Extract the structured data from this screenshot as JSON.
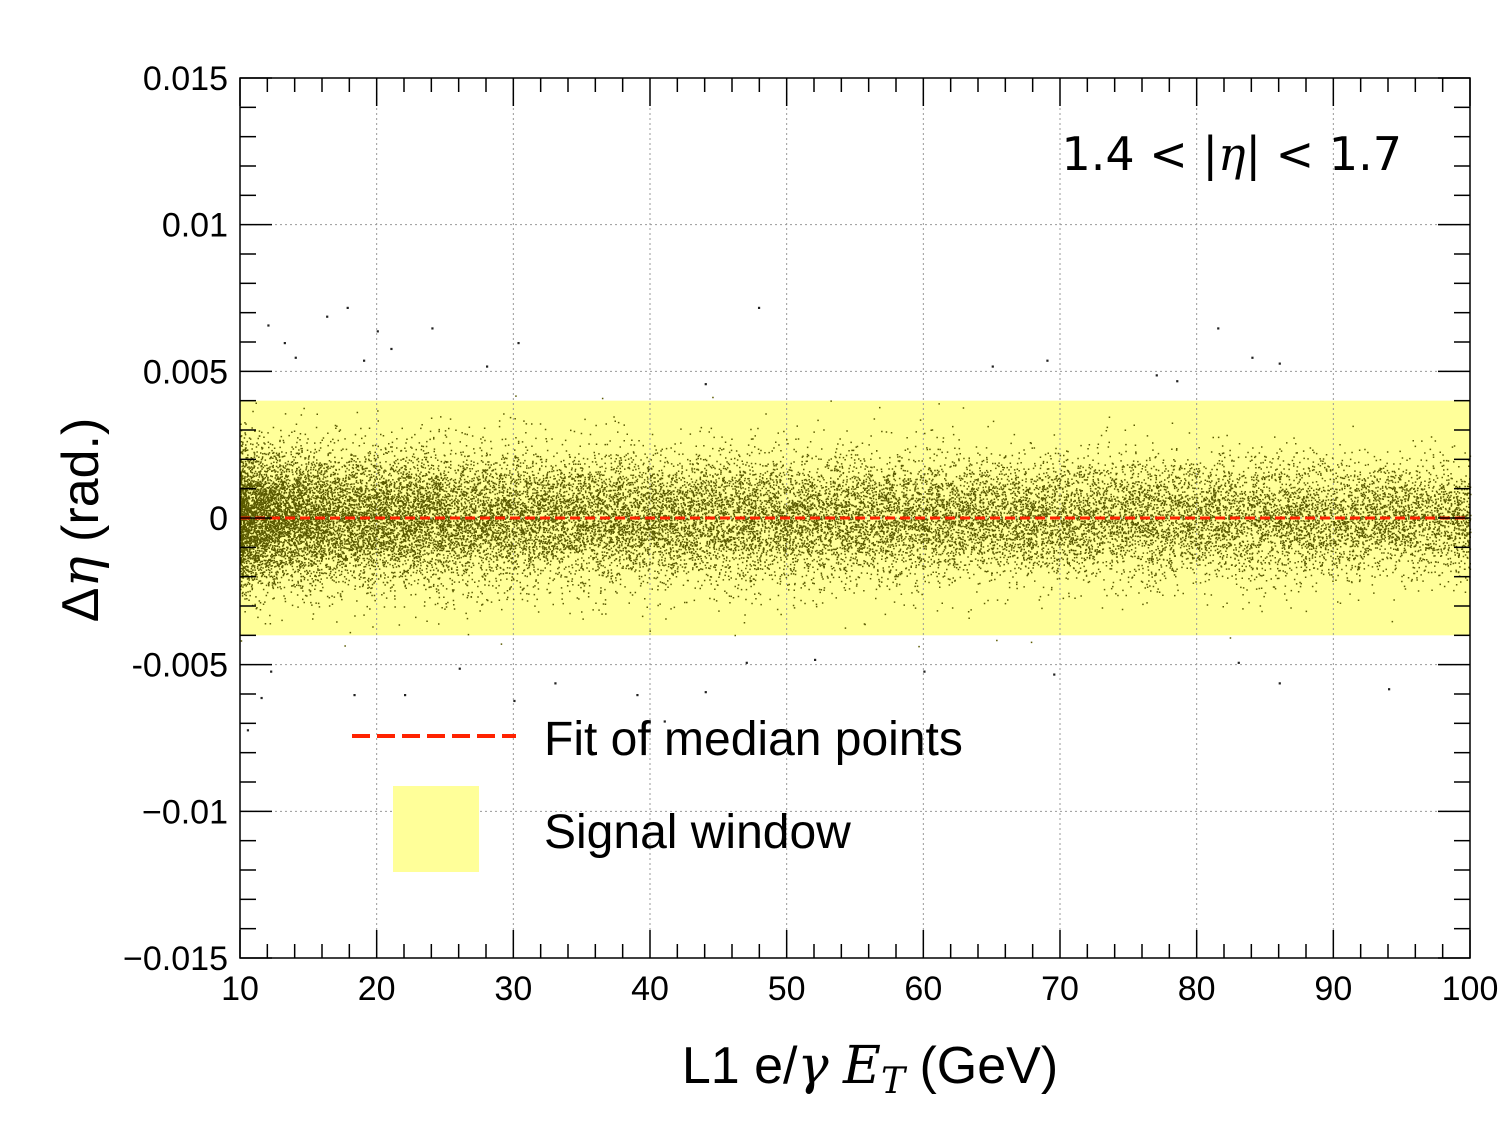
{
  "chart_data": {
    "type": "scatter",
    "title": "",
    "xlabel": {
      "prefix": "L1 e/",
      "gamma": "γ",
      "et_main": "E",
      "et_sub": "T",
      "suffix": " (GeV)"
    },
    "ylabel": {
      "delta": "Δ",
      "eta": "η",
      "suffix": " (rad.)"
    },
    "xlim": [
      10,
      100
    ],
    "ylim": [
      -0.015,
      0.015
    ],
    "x_ticks": [
      10,
      20,
      30,
      40,
      50,
      60,
      70,
      80,
      90,
      100
    ],
    "x_tick_labels": [
      "10",
      "20",
      "30",
      "40",
      "50",
      "60",
      "70",
      "80",
      "90",
      "100"
    ],
    "y_ticks": [
      -0.015,
      -0.01,
      -0.005,
      0,
      0.005,
      0.01,
      0.015
    ],
    "y_tick_labels": [
      "−0.015",
      "−0.01",
      "-0.005",
      "0",
      "0.005",
      "0.01",
      "0.015"
    ],
    "grid": true,
    "annotation": {
      "left": "1.4 < |",
      "eta": "η",
      "right": "| < 1.7"
    },
    "signal_window": {
      "y_low": -0.004,
      "y_high": 0.004,
      "color": "#ffff99"
    },
    "median_fit": {
      "y_value": 0.0,
      "color": "#ff2200"
    },
    "scatter": {
      "color": "#5a5a00",
      "n_points": 26000,
      "sigma_at_x10": 0.00115,
      "sigma_at_x100": 0.00095,
      "outliers": [
        {
          "x": 12.0,
          "y": 0.0066
        },
        {
          "x": 13.2,
          "y": 0.006
        },
        {
          "x": 16.3,
          "y": 0.0069
        },
        {
          "x": 17.8,
          "y": 0.0072
        },
        {
          "x": 20.0,
          "y": 0.0064
        },
        {
          "x": 24.0,
          "y": 0.0065
        },
        {
          "x": 30.3,
          "y": 0.006
        },
        {
          "x": 47.9,
          "y": 0.0072
        },
        {
          "x": 81.5,
          "y": 0.0065
        },
        {
          "x": 14.0,
          "y": 0.0055
        },
        {
          "x": 21.0,
          "y": 0.0058
        },
        {
          "x": 65.0,
          "y": 0.0052
        },
        {
          "x": 69.0,
          "y": 0.0054
        },
        {
          "x": 84.0,
          "y": 0.0055
        },
        {
          "x": 86.0,
          "y": 0.0053
        },
        {
          "x": 28.0,
          "y": 0.0052
        },
        {
          "x": 19.0,
          "y": 0.0054
        },
        {
          "x": 77.0,
          "y": 0.0049
        },
        {
          "x": 78.5,
          "y": 0.0047
        },
        {
          "x": 44.0,
          "y": 0.0046
        },
        {
          "x": 12.2,
          "y": -0.0052
        },
        {
          "x": 18.3,
          "y": -0.006
        },
        {
          "x": 22.0,
          "y": -0.006
        },
        {
          "x": 30.0,
          "y": -0.0062
        },
        {
          "x": 33.0,
          "y": -0.0056
        },
        {
          "x": 39.0,
          "y": -0.006
        },
        {
          "x": 44.0,
          "y": -0.0059
        },
        {
          "x": 60.0,
          "y": -0.0052
        },
        {
          "x": 69.5,
          "y": -0.0053
        },
        {
          "x": 86.0,
          "y": -0.0056
        },
        {
          "x": 94.0,
          "y": -0.0058
        },
        {
          "x": 10.5,
          "y": -0.0072
        },
        {
          "x": 11.5,
          "y": -0.0061
        },
        {
          "x": 47.0,
          "y": -0.0049
        },
        {
          "x": 52.0,
          "y": -0.0048
        },
        {
          "x": 83.0,
          "y": -0.0049
        },
        {
          "x": 26.0,
          "y": -0.0051
        },
        {
          "x": 41.0,
          "y": -0.0069
        }
      ]
    },
    "legend": [
      {
        "label": "Fit of median points",
        "kind": "line",
        "color": "#ff2200"
      },
      {
        "label": "Signal window",
        "kind": "box",
        "color": "#ffff99"
      }
    ]
  }
}
